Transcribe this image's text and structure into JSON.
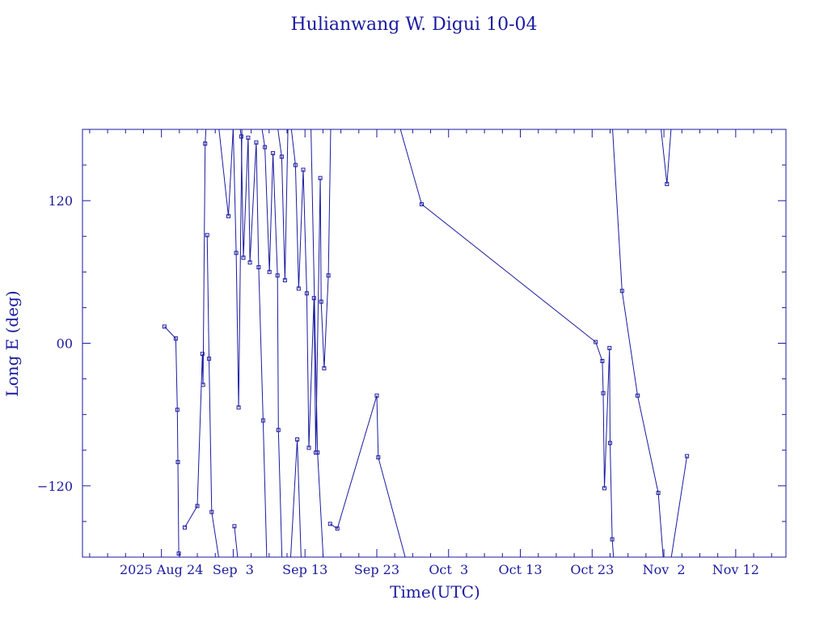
{
  "chart_data": {
    "type": "line",
    "title": "Hulianwang W. Digui 10-04",
    "xlabel": "Time(UTC)",
    "ylabel": "Long E (deg)",
    "xlim": [
      "2025-08-13T00:00",
      "2025-11-19T00:00"
    ],
    "ylim": [
      -180,
      180
    ],
    "x_ticks": [
      {
        "date": "2025-08-24",
        "label": "2025 Aug 24"
      },
      {
        "date": "2025-09-03",
        "label": "Sep  3"
      },
      {
        "date": "2025-09-13",
        "label": "Sep 13"
      },
      {
        "date": "2025-09-23",
        "label": "Sep 23"
      },
      {
        "date": "2025-10-03",
        "label": "Oct  3"
      },
      {
        "date": "2025-10-13",
        "label": "Oct 13"
      },
      {
        "date": "2025-10-23",
        "label": "Oct 23"
      },
      {
        "date": "2025-11-02",
        "label": "Nov  2"
      },
      {
        "date": "2025-11-12",
        "label": "Nov 12"
      }
    ],
    "x_minor_tick_days": 2.5,
    "y_ticks": [
      {
        "value": 120,
        "label": "120"
      },
      {
        "value": 0,
        "label": "00"
      },
      {
        "value": -120,
        "label": "−120"
      }
    ],
    "y_minor_step": 30,
    "grid": false,
    "series": [
      {
        "points": [
          [
            "2025-08-24T10:00",
            14
          ],
          [
            "2025-08-26T00:00",
            4
          ],
          [
            "2025-08-26T05:00",
            -56
          ],
          [
            "2025-08-26T07:00",
            -100
          ],
          [
            "2025-08-26T10:00",
            -177
          ],
          [
            "2025-08-26T14:00",
            -181
          ],
          null,
          [
            "2025-08-27T06:00",
            -155
          ],
          [
            "2025-08-29T00:00",
            -137
          ],
          [
            "2025-08-29T17:00",
            -9
          ],
          [
            "2025-08-29T19:00",
            -35
          ],
          [
            "2025-08-30T02:00",
            168
          ],
          [
            "2025-08-30T05:00",
            181
          ],
          null,
          [
            "2025-08-30T09:00",
            91
          ],
          [
            "2025-08-30T15:00",
            -13
          ],
          [
            "2025-08-31T00:00",
            -142
          ],
          [
            "2025-09-01T00:00",
            -181
          ],
          null,
          [
            "2025-09-01T00:00",
            181
          ],
          [
            "2025-09-02T08:00",
            107
          ],
          [
            "2025-09-03T00:00",
            181
          ],
          null,
          [
            "2025-09-03T04:00",
            -154
          ],
          [
            "2025-09-03T15:00",
            -181
          ],
          null,
          [
            "2025-09-03T00:00",
            181
          ],
          [
            "2025-09-03T10:00",
            76
          ],
          [
            "2025-09-03T18:00",
            -54
          ],
          [
            "2025-09-04T05:00",
            181
          ],
          null,
          [
            "2025-09-03T23:00",
            181
          ],
          [
            "2025-09-04T03:00",
            174
          ],
          [
            "2025-09-04T10:00",
            72
          ],
          [
            "2025-09-05T02:00",
            173
          ],
          [
            "2025-09-05T08:00",
            68
          ],
          [
            "2025-09-06T05:00",
            169
          ],
          [
            "2025-09-06T13:00",
            64
          ],
          [
            "2025-09-07T04:00",
            -65
          ],
          [
            "2025-09-07T16:00",
            -181
          ],
          null,
          [
            "2025-09-07T00:00",
            181
          ],
          [
            "2025-09-07T10:00",
            165
          ],
          [
            "2025-09-08T01:00",
            60
          ],
          [
            "2025-09-08T13:00",
            160
          ],
          [
            "2025-09-09T04:00",
            57
          ],
          [
            "2025-09-09T07:00",
            -73
          ],
          [
            "2025-09-09T19:00",
            -181
          ],
          null,
          [
            "2025-09-09T05:00",
            181
          ],
          [
            "2025-09-09T18:00",
            157
          ],
          [
            "2025-09-10T05:00",
            53
          ],
          [
            "2025-09-10T15:00",
            181
          ],
          null,
          [
            "2025-09-11T02:00",
            181
          ],
          [
            "2025-09-11T16:00",
            150
          ],
          [
            "2025-09-12T03:00",
            46
          ],
          [
            "2025-09-12T18:00",
            146
          ],
          [
            "2025-09-13T06:00",
            42
          ],
          [
            "2025-09-13T13:00",
            -88
          ],
          [
            "2025-09-14T06:00",
            38
          ],
          [
            "2025-09-14T12:00",
            -92
          ],
          [
            "2025-09-15T03:00",
            139
          ],
          [
            "2025-09-15T06:00",
            35
          ],
          [
            "2025-09-15T16:00",
            -21
          ],
          [
            "2025-09-16T06:00",
            57
          ],
          [
            "2025-09-16T14:00",
            181
          ],
          null,
          [
            "2025-09-11T00:00",
            -181
          ],
          [
            "2025-09-11T22:00",
            -81
          ],
          [
            "2025-09-12T11:00",
            -181
          ],
          null,
          [
            "2025-09-13T20:00",
            181
          ],
          [
            "2025-09-14T18:00",
            -92
          ],
          [
            "2025-09-15T13:00",
            -181
          ],
          null,
          [
            "2025-09-16T12:00",
            -152
          ],
          [
            "2025-09-17T12:00",
            -156
          ],
          [
            "2025-09-23T00:00",
            -44
          ],
          [
            "2025-09-23T05:00",
            -96
          ],
          [
            "2025-09-27T00:00",
            -181
          ],
          null,
          [
            "2025-09-26T06:00",
            181
          ],
          [
            "2025-09-29T06:00",
            117
          ],
          [
            "2025-10-23T12:00",
            1
          ],
          [
            "2025-10-24T10:00",
            -15
          ],
          [
            "2025-10-24T13:00",
            -42
          ],
          [
            "2025-10-24T17:00",
            -122
          ],
          [
            "2025-10-25T10:00",
            -4
          ],
          [
            "2025-10-25T12:00",
            -84
          ],
          [
            "2025-10-25T19:00",
            -165
          ],
          [
            "2025-10-26T00:00",
            -181
          ],
          null,
          [
            "2025-10-25T20:00",
            181
          ],
          [
            "2025-10-27T04:00",
            44
          ],
          [
            "2025-10-29T08:00",
            -44
          ],
          [
            "2025-11-01T05:00",
            -126
          ],
          [
            "2025-11-01T22:00",
            -181
          ],
          null,
          [
            "2025-11-01T14:00",
            181
          ],
          [
            "2025-11-02T10:00",
            134
          ],
          [
            "2025-11-03T00:00",
            181
          ],
          null,
          [
            "2025-11-03T00:00",
            -181
          ],
          [
            "2025-11-05T05:00",
            -95
          ]
        ]
      }
    ]
  }
}
